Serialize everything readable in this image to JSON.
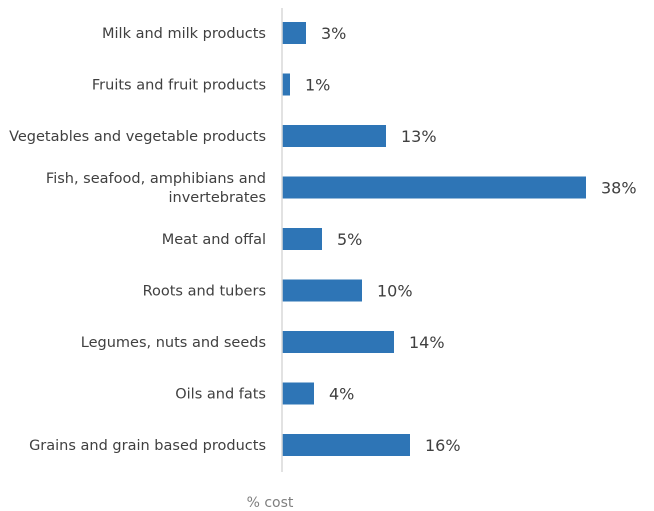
{
  "chart_data": {
    "type": "bar",
    "orientation": "horizontal",
    "categories": [
      "Milk and milk products",
      "Fruits and fruit products",
      "Vegetables and vegetable products",
      "Fish, seafood, amphibians and invertebrates",
      "Meat and offal",
      "Roots and tubers",
      "Legumes, nuts and seeds",
      "Oils and fats",
      "Grains and grain based products"
    ],
    "category_lines": [
      [
        "Milk and milk products"
      ],
      [
        "Fruits and fruit products"
      ],
      [
        "Vegetables and vegetable products"
      ],
      [
        "Fish, seafood, amphibians and",
        "invertebrates"
      ],
      [
        "Meat and offal"
      ],
      [
        "Roots and tubers"
      ],
      [
        "Legumes, nuts and seeds"
      ],
      [
        "Oils and fats"
      ],
      [
        "Grains and grain based products"
      ]
    ],
    "values": [
      3,
      1,
      13,
      38,
      5,
      10,
      14,
      4,
      16
    ],
    "value_labels": [
      "3%",
      "1%",
      "13%",
      "38%",
      "5%",
      "10%",
      "14%",
      "4%",
      "16%"
    ],
    "xlabel": "% cost",
    "ylabel": "",
    "xlim": [
      0,
      38
    ],
    "grid": false,
    "legend": "none",
    "bar_color": "#2e75b6"
  }
}
